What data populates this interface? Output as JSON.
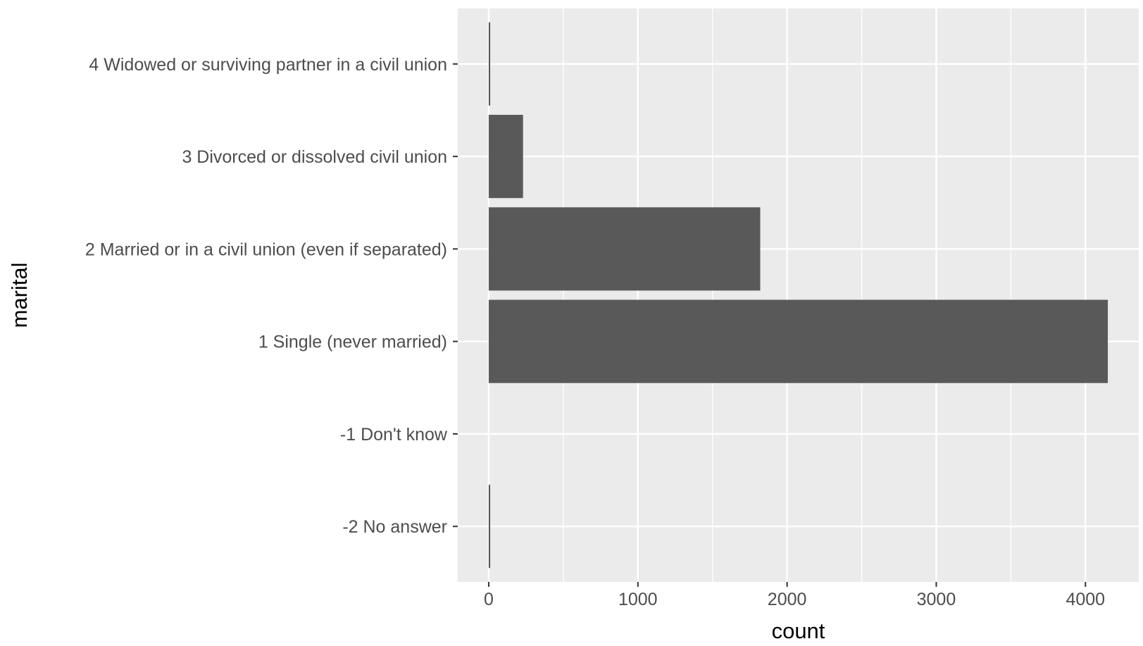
{
  "chart_data": {
    "type": "bar",
    "orientation": "horizontal",
    "title": "",
    "xlabel": "count",
    "ylabel": "marital",
    "categories": [
      "-2 No answer",
      "-1 Don't know",
      "1 Single (never married)",
      "2 Married or in a civil union (even if separated)",
      "3 Divorced or dissolved civil union",
      "4 Widowed or surviving partner in a civil union"
    ],
    "values": [
      10,
      0,
      4150,
      1820,
      230,
      10
    ],
    "x_ticks": [
      0,
      1000,
      2000,
      3000,
      4000
    ],
    "x_tick_labels": [
      "0",
      "1000",
      "2000",
      "3000",
      "4000"
    ],
    "xlim": [
      -207.5,
      4357.5
    ],
    "grid": true,
    "legend": "none",
    "colors": {
      "panel_background": "#ebebeb",
      "grid": "#ffffff",
      "bar_fill": "#595959",
      "tick_mark": "#333333",
      "tick_text": "#4d4d4d",
      "axis_title": "#000000"
    }
  }
}
